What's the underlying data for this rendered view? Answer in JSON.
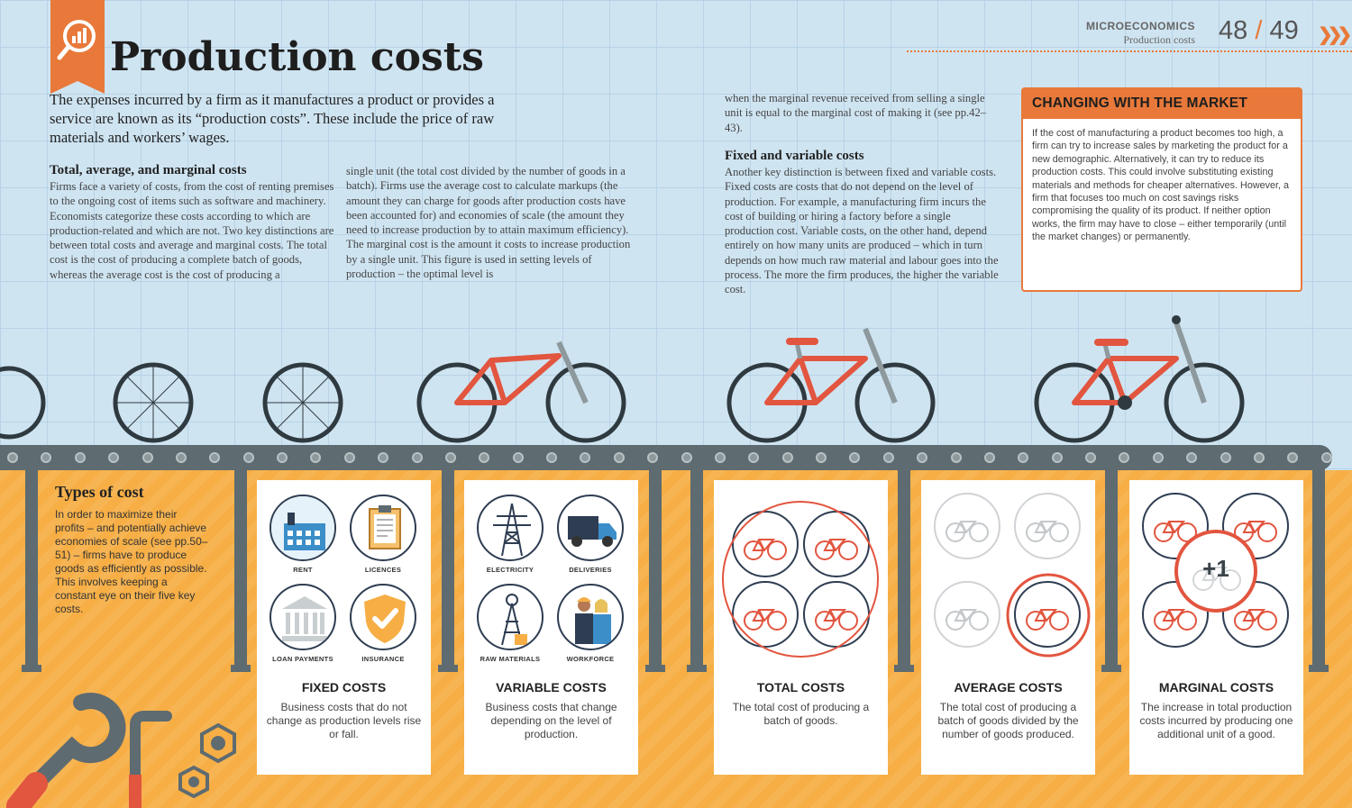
{
  "header": {
    "title": "Production costs",
    "section": "MICROECONOMICS",
    "subsection": "Production costs",
    "page_left": "48",
    "page_sep": "/",
    "page_right": "49"
  },
  "intro": "The expenses incurred by a firm as it manufactures a product or provides a service are known as its “production costs”. These include the price of raw materials and workers’ wages.",
  "sections": {
    "total_heading": "Total, average, and marginal costs",
    "col1": "Firms face a variety of costs, from the cost of renting premises to the ongoing cost of items such as software and machinery. Economists categorize these costs according to which are production-related and which are not. Two key distinctions are between total costs and average and marginal costs. The total cost is the cost of producing a complete batch of goods, whereas the average cost is the cost of producing a",
    "col2": "single unit (the total cost divided by the number of goods in a batch). Firms use the average cost to calculate markups (the amount they can charge for goods after production costs have been accounted for) and economies of scale (the amount they need to increase production by to attain maximum efficiency). The marginal cost is the amount it costs to increase production by a single unit. This figure is used in setting levels of production – the optimal level is",
    "col3a": "when the marginal revenue received from selling a single unit is equal to the marginal cost of making it (see pp.42–43).",
    "fixed_heading": "Fixed and variable costs",
    "col3": "Another key distinction is between fixed and variable costs. Fixed costs are costs that do not depend on the level of production. For example, a manufacturing firm incurs the cost of building or hiring a factory before a single production cost. Variable costs, on the other hand, depend entirely on how many units are produced – which in turn depends on how much raw material and labour goes into the process. The more the firm produces, the higher the variable cost."
  },
  "sidebar": {
    "heading": "CHANGING WITH THE MARKET",
    "body": "If the cost of manufacturing a product becomes too high, a firm can try to increase sales by marketing the product for a new demographic. Alternatively, it can try to reduce its production costs. This could involve substituting existing materials and methods for cheaper alternatives. However, a firm that focuses too much on cost savings risks compromising the quality of its product. If neither option works, the firm may have to close – either temporarily (until the market changes) or permanently."
  },
  "types": {
    "heading": "Types of cost",
    "body": "In order to maximize their profits – and potentially achieve economies of scale (see pp.50–51) – firms have to produce goods as efficiently as possible. This involves keeping a constant eye on their five key costs."
  },
  "cards": [
    {
      "title": "FIXED COSTS",
      "desc": "Business costs that do not change as production levels rise or fall.",
      "icons": [
        "RENT",
        "LICENCES",
        "LOAN PAYMENTS",
        "INSURANCE"
      ]
    },
    {
      "title": "VARIABLE COSTS",
      "desc": "Business costs that change depending on the level of production.",
      "icons": [
        "ELECTRICITY",
        "DELIVERIES",
        "RAW MATERIALS",
        "WORKFORCE"
      ]
    },
    {
      "title": "TOTAL COSTS",
      "desc": "The total cost of producing a batch of goods."
    },
    {
      "title": "AVERAGE COSTS",
      "desc": "The total cost of producing a batch of goods divided by the number of goods produced."
    },
    {
      "title": "MARGINAL COSTS",
      "desc": "The increase in total production costs incurred by producing one additional unit of a good.",
      "badge": "+1"
    }
  ],
  "colors": {
    "accent": "#e8793a",
    "floor": "#f6ae45",
    "bike": "#e2553f",
    "steel": "#5e6b70",
    "navy": "#2e3d52"
  }
}
